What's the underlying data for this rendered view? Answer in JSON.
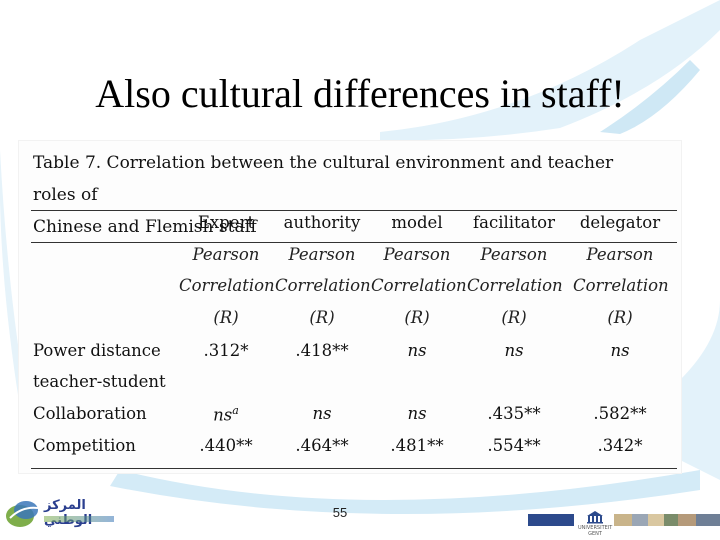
{
  "slide": {
    "title": "Also cultural differences in staff!",
    "page_number": "55"
  },
  "table": {
    "caption_line1": "Table 7. Correlation between the cultural environment and teacher roles of",
    "caption_line2": "Chinese and Flemish staff",
    "columns": [
      "Expert",
      "authority",
      "model",
      "facilitator",
      "delegator"
    ],
    "subheader": [
      "Pearson",
      "Correlation",
      "(R)"
    ],
    "rows": [
      {
        "label": "Power distance",
        "values": [
          ".312*",
          ".418**",
          "ns",
          "ns",
          "ns"
        ]
      },
      {
        "label": "teacher-student",
        "values": [
          "",
          "",
          "",
          "",
          ""
        ]
      },
      {
        "label": "Collaboration",
        "values": [
          "nsa",
          "ns",
          "ns",
          ".435**",
          ".582**"
        ]
      },
      {
        "label": "Competition",
        "values": [
          ".440**",
          ".464**",
          ".481**",
          ".554**",
          ".342*"
        ]
      }
    ]
  },
  "logos": {
    "left_org_name": "المركز الوطني",
    "right_org_name": "UNIVERSITEIT GENT"
  },
  "colors": {
    "swoosh": "#dbeef8",
    "logo_blue": "#2b3f8f",
    "logo_green": "#7fae4b"
  }
}
